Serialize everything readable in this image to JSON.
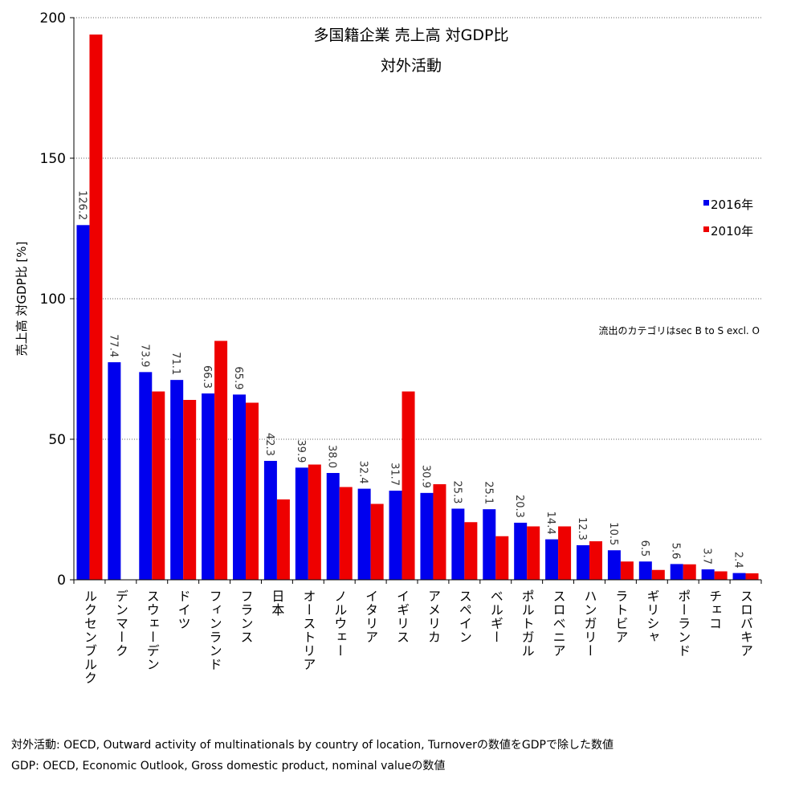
{
  "chart_data": {
    "type": "bar",
    "title": "多国籍企業 売上高 対GDP比",
    "subtitle": "対外活動",
    "y_label": "売上高 対GDP比 [%]",
    "annotation": "流出のカテゴリはsec B to S excl. O",
    "notes": [
      "対外活動: OECD, Outward activity of multinationals by country of location, Turnoverの数値をGDPで除した数値",
      "GDP: OECD, Economic Outlook, Gross domestic product, nominal valueの数値"
    ],
    "categories": [
      "ルクセンブルク",
      "デンマーク",
      "スウェーデン",
      "ドイツ",
      "フィンランド",
      "フランス",
      "日本",
      "オーストリア",
      "ノルウェー",
      "イタリア",
      "イギリス",
      "アメリカ",
      "スペイン",
      "ベルギー",
      "ポルトガル",
      "スロベニア",
      "ハンガリー",
      "ラトビア",
      "ギリシャ",
      "ポーランド",
      "チェコ",
      "スロバキア"
    ],
    "series": [
      {
        "name": "2016年",
        "color": "#0000ee",
        "values": [
          126.2,
          77.4,
          73.9,
          71.1,
          66.3,
          65.9,
          42.3,
          39.9,
          38.0,
          32.4,
          31.7,
          30.9,
          25.3,
          25.1,
          20.3,
          14.4,
          12.3,
          10.5,
          6.5,
          5.6,
          3.7,
          2.4
        ],
        "value_labels": [
          "126.2",
          "77.4",
          "73.9",
          "71.1",
          "66.3",
          "65.9",
          "42.3",
          "39.9",
          "38.0",
          "32.4",
          "31.7",
          "30.9",
          "25.3",
          "25.1",
          "20.3",
          "14.4",
          "12.3",
          "10.5",
          "6.5",
          "5.6",
          "3.7",
          "2.4"
        ]
      },
      {
        "name": "2010年",
        "color": "#ee0000",
        "values": [
          194,
          null,
          67,
          64,
          85,
          63,
          28.6,
          41,
          33,
          27,
          67,
          34,
          20.5,
          15.5,
          19,
          19,
          13.7,
          6.5,
          3.5,
          5.5,
          3,
          2.3
        ]
      }
    ],
    "ylim": [
      0,
      200
    ],
    "yticks": [
      0,
      50,
      100,
      150,
      200
    ],
    "grid": true,
    "legend": "right"
  }
}
